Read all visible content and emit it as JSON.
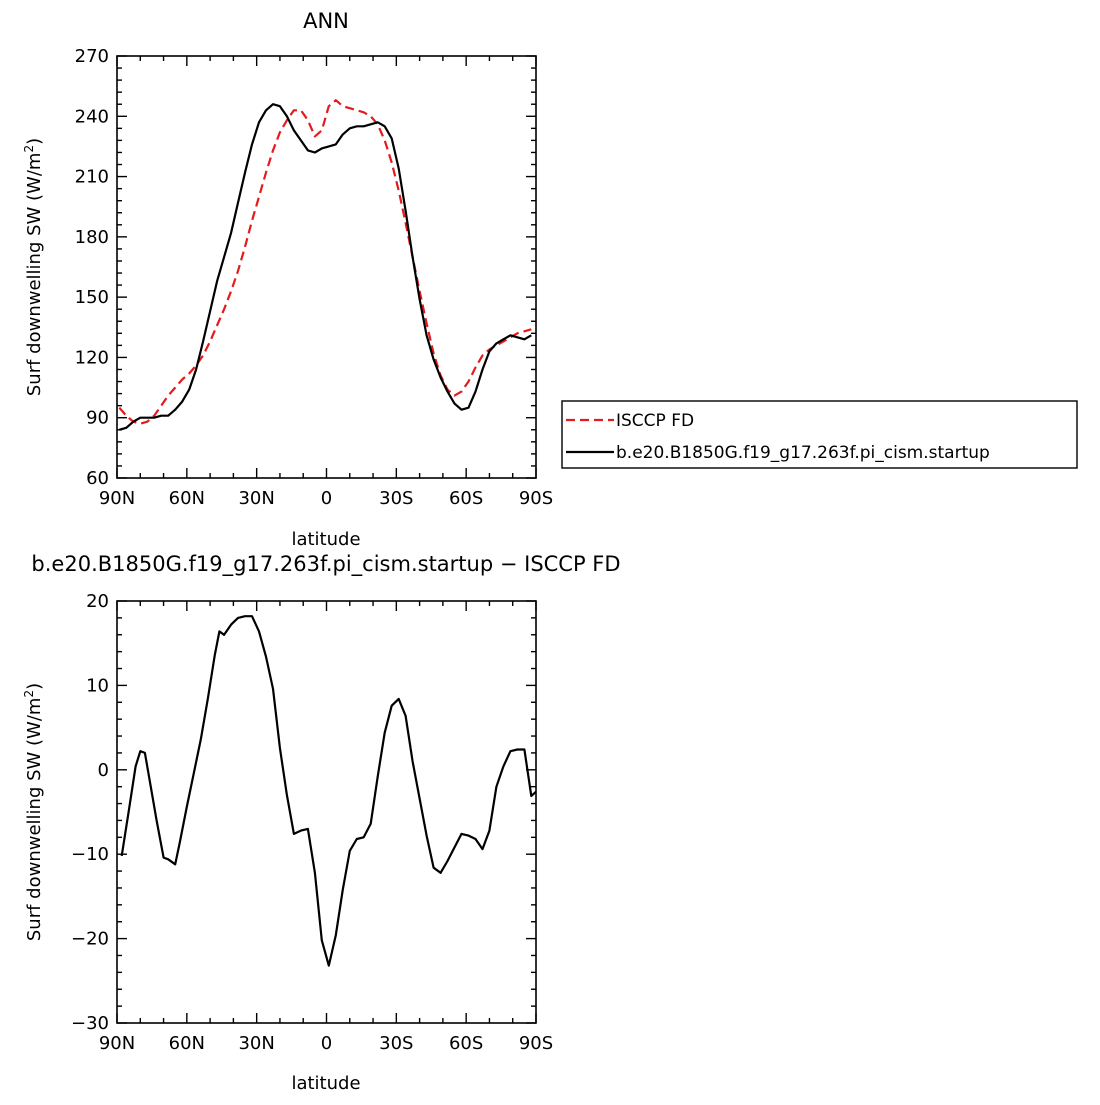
{
  "chart_data": [
    {
      "type": "line",
      "title": "ANN",
      "xlabel": "latitude",
      "ylabel": "Surf downwelling SW (W/m²)",
      "ylabel_main": "Surf downwelling SW (W/m",
      "ylabel_sup": "2",
      "ylabel_end": ")",
      "xlim": [
        -90,
        90
      ],
      "ylim": [
        60,
        270
      ],
      "x_direction": "N to S",
      "x_ticks": [
        -90,
        -60,
        -30,
        0,
        30,
        60,
        90
      ],
      "x_tick_labels": [
        "90N",
        "60N",
        "30N",
        "0",
        "30S",
        "60S",
        "90S"
      ],
      "y_ticks": [
        60,
        90,
        120,
        150,
        180,
        210,
        240,
        270
      ],
      "y_tick_labels": [
        "60",
        "90",
        "120",
        "150",
        "180",
        "210",
        "240",
        "270"
      ],
      "legend_position": "right",
      "series": [
        {
          "name": "ISCCP FD",
          "color": "#e41a1c",
          "dash": "dashed",
          "points": [
            [
              -89,
              95
            ],
            [
              -86,
              91
            ],
            [
              -83,
              88
            ],
            [
              -80,
              87
            ],
            [
              -77,
              88
            ],
            [
              -74,
              91
            ],
            [
              -71,
              96
            ],
            [
              -68,
              101
            ],
            [
              -65,
              105
            ],
            [
              -62,
              109
            ],
            [
              -59,
              112
            ],
            [
              -56,
              116
            ],
            [
              -53,
              121
            ],
            [
              -50,
              128
            ],
            [
              -47,
              136
            ],
            [
              -44,
              144
            ],
            [
              -41,
              153
            ],
            [
              -38,
              163
            ],
            [
              -35,
              175
            ],
            [
              -32,
              188
            ],
            [
              -29,
              200
            ],
            [
              -26,
              212
            ],
            [
              -23,
              223
            ],
            [
              -20,
              232
            ],
            [
              -17,
              238
            ],
            [
              -14,
              243
            ],
            [
              -11,
              243
            ],
            [
              -8,
              238
            ],
            [
              -5,
              230
            ],
            [
              -2,
              233
            ],
            [
              1,
              245
            ],
            [
              4,
              248
            ],
            [
              7,
              245
            ],
            [
              10,
              244
            ],
            [
              13,
              243
            ],
            [
              16,
              242
            ],
            [
              19,
              240
            ],
            [
              22,
              236
            ],
            [
              25,
              228
            ],
            [
              28,
              217
            ],
            [
              31,
              203
            ],
            [
              34,
              187
            ],
            [
              37,
              170
            ],
            [
              40,
              153
            ],
            [
              43,
              137
            ],
            [
              46,
              122
            ],
            [
              49,
              111
            ],
            [
              52,
              104
            ],
            [
              55,
              101
            ],
            [
              58,
              103
            ],
            [
              61,
              108
            ],
            [
              64,
              115
            ],
            [
              67,
              121
            ],
            [
              70,
              124
            ],
            [
              73,
              126
            ],
            [
              76,
              128
            ],
            [
              79,
              130
            ],
            [
              82,
              132
            ],
            [
              85,
              133
            ],
            [
              88,
              134
            ]
          ]
        },
        {
          "name": "b.e20.B1850G.f19_g17.263f.pi_cism.startup",
          "color": "#000000",
          "dash": "solid",
          "points": [
            [
              -89,
              84
            ],
            [
              -86,
              85
            ],
            [
              -83,
              88
            ],
            [
              -80,
              90
            ],
            [
              -77,
              90
            ],
            [
              -74,
              90
            ],
            [
              -71,
              91
            ],
            [
              -68,
              91
            ],
            [
              -65,
              94
            ],
            [
              -62,
              98
            ],
            [
              -59,
              104
            ],
            [
              -56,
              114
            ],
            [
              -53,
              128
            ],
            [
              -50,
              143
            ],
            [
              -47,
              158
            ],
            [
              -44,
              170
            ],
            [
              -41,
              182
            ],
            [
              -38,
              197
            ],
            [
              -35,
              212
            ],
            [
              -32,
              226
            ],
            [
              -29,
              237
            ],
            [
              -26,
              243
            ],
            [
              -23,
              246
            ],
            [
              -20,
              245
            ],
            [
              -17,
              240
            ],
            [
              -14,
              233
            ],
            [
              -11,
              228
            ],
            [
              -8,
              223
            ],
            [
              -5,
              222
            ],
            [
              -2,
              224
            ],
            [
              1,
              225
            ],
            [
              4,
              226
            ],
            [
              7,
              231
            ],
            [
              10,
              234
            ],
            [
              13,
              235
            ],
            [
              16,
              235
            ],
            [
              19,
              236
            ],
            [
              22,
              237
            ],
            [
              25,
              235
            ],
            [
              28,
              229
            ],
            [
              31,
              214
            ],
            [
              34,
              193
            ],
            [
              37,
              170
            ],
            [
              40,
              149
            ],
            [
              43,
              131
            ],
            [
              46,
              119
            ],
            [
              49,
              110
            ],
            [
              52,
              103
            ],
            [
              55,
              97
            ],
            [
              58,
              94
            ],
            [
              61,
              95
            ],
            [
              64,
              103
            ],
            [
              67,
              114
            ],
            [
              70,
              123
            ],
            [
              73,
              127
            ],
            [
              76,
              129
            ],
            [
              79,
              131
            ],
            [
              82,
              130
            ],
            [
              85,
              129
            ],
            [
              88,
              131
            ]
          ]
        }
      ]
    },
    {
      "type": "line",
      "title": "b.e20.B1850G.f19_g17.263f.pi_cism.startup − ISCCP FD",
      "xlabel": "latitude",
      "ylabel": "Surf downwelling SW (W/m²)",
      "ylabel_main": "Surf downwelling SW (W/m",
      "ylabel_sup": "2",
      "ylabel_end": ")",
      "xlim": [
        -90,
        90
      ],
      "ylim": [
        -30,
        20
      ],
      "x_direction": "N to S",
      "x_ticks": [
        -90,
        -60,
        -30,
        0,
        30,
        60,
        90
      ],
      "x_tick_labels": [
        "90N",
        "60N",
        "30N",
        "0",
        "30S",
        "60S",
        "90S"
      ],
      "y_ticks": [
        -30,
        -20,
        -10,
        0,
        10,
        20
      ],
      "y_tick_labels": [
        "−30",
        "−20",
        "−10",
        "0",
        "10",
        "20"
      ],
      "series": [
        {
          "color": "#000000",
          "dash": "solid",
          "points": [
            [
              -88,
              -10.2
            ],
            [
              -85,
              -5
            ],
            [
              -82,
              0.4
            ],
            [
              -80,
              2.2
            ],
            [
              -78,
              2
            ],
            [
              -76,
              -1.2
            ],
            [
              -73,
              -6
            ],
            [
              -70,
              -10.4
            ],
            [
              -68,
              -10.6
            ],
            [
              -65,
              -11.2
            ],
            [
              -63,
              -8.6
            ],
            [
              -60,
              -4.4
            ],
            [
              -57,
              -0.4
            ],
            [
              -54,
              3.6
            ],
            [
              -51,
              8.4
            ],
            [
              -48,
              13.6
            ],
            [
              -46,
              16.4
            ],
            [
              -44,
              16
            ],
            [
              -41,
              17.2
            ],
            [
              -38,
              18
            ],
            [
              -35,
              18.2
            ],
            [
              -32,
              18.2
            ],
            [
              -29,
              16.4
            ],
            [
              -26,
              13.4
            ],
            [
              -23,
              9.6
            ],
            [
              -20,
              2.6
            ],
            [
              -17,
              -3
            ],
            [
              -14,
              -7.6
            ],
            [
              -11,
              -7.2
            ],
            [
              -8,
              -7
            ],
            [
              -5,
              -12.2
            ],
            [
              -2,
              -20.2
            ],
            [
              1,
              -23.2
            ],
            [
              4,
              -19.6
            ],
            [
              7,
              -14.2
            ],
            [
              10,
              -9.6
            ],
            [
              13,
              -8.2
            ],
            [
              16,
              -8
            ],
            [
              19,
              -6.4
            ],
            [
              22,
              -0.8
            ],
            [
              25,
              4.4
            ],
            [
              28,
              7.6
            ],
            [
              31,
              8.4
            ],
            [
              34,
              6.4
            ],
            [
              37,
              1
            ],
            [
              40,
              -3.4
            ],
            [
              43,
              -7.8
            ],
            [
              46,
              -11.6
            ],
            [
              49,
              -12.2
            ],
            [
              52,
              -10.8
            ],
            [
              55,
              -9.2
            ],
            [
              58,
              -7.6
            ],
            [
              61,
              -7.8
            ],
            [
              64,
              -8.2
            ],
            [
              67,
              -9.4
            ],
            [
              70,
              -7.2
            ],
            [
              73,
              -2
            ],
            [
              76,
              0.4
            ],
            [
              79,
              2.2
            ],
            [
              82,
              2.4
            ],
            [
              85,
              2.4
            ],
            [
              88,
              -3.1
            ],
            [
              90,
              -2.6
            ]
          ]
        }
      ]
    }
  ]
}
